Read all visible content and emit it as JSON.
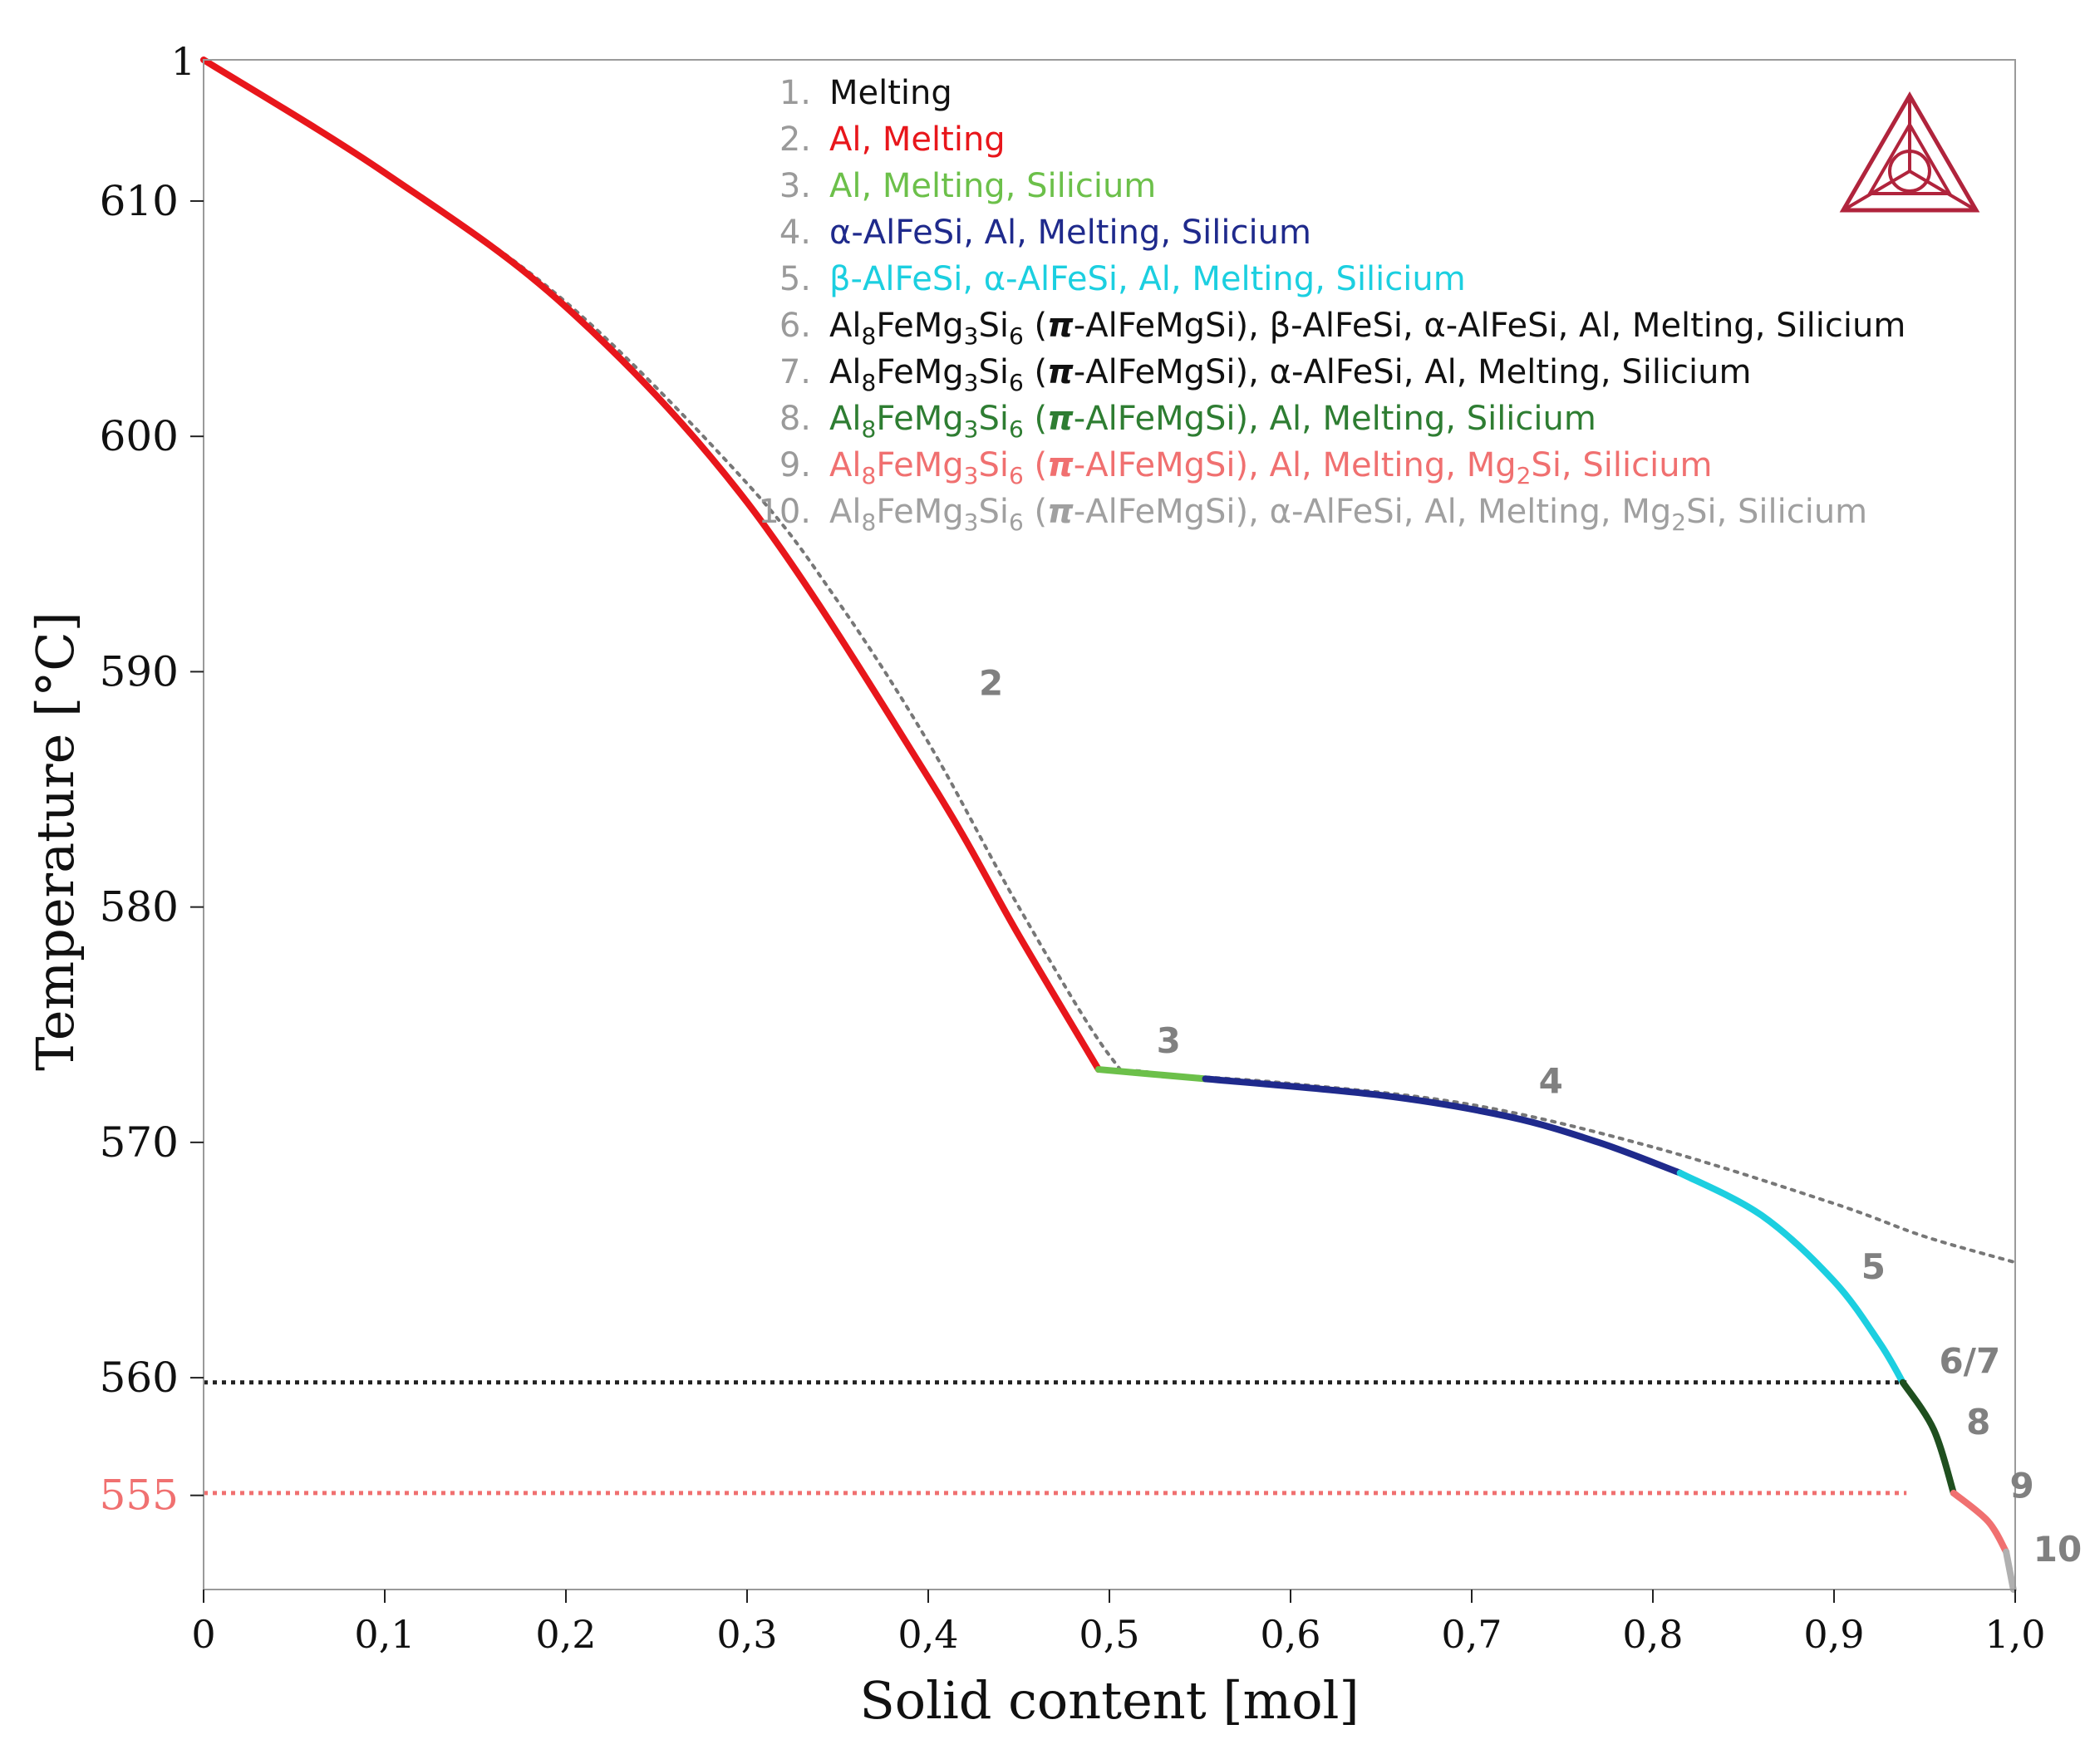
{
  "chart_data": {
    "type": "line",
    "xlabel": "Solid content [mol]",
    "ylabel": "Temperature [°C]",
    "xlim": [
      0,
      1.0
    ],
    "ylim": [
      551,
      616
    ],
    "x_ticks": [
      {
        "value": 0.0,
        "label": "0"
      },
      {
        "value": 0.1,
        "label": "0,1"
      },
      {
        "value": 0.2,
        "label": "0,2"
      },
      {
        "value": 0.3,
        "label": "0,3"
      },
      {
        "value": 0.4,
        "label": "0,4"
      },
      {
        "value": 0.5,
        "label": "0,5"
      },
      {
        "value": 0.6,
        "label": "0,6"
      },
      {
        "value": 0.7,
        "label": "0,7"
      },
      {
        "value": 0.8,
        "label": "0,8"
      },
      {
        "value": 0.9,
        "label": "0,9"
      },
      {
        "value": 1.0,
        "label": "1,0"
      }
    ],
    "y_ticks": [
      {
        "value": 610,
        "label": "610"
      },
      {
        "value": 600,
        "label": "600"
      },
      {
        "value": 590,
        "label": "590"
      },
      {
        "value": 580,
        "label": "580"
      },
      {
        "value": 570,
        "label": "570"
      },
      {
        "value": 560,
        "label": "560"
      },
      {
        "value": 555,
        "label": "555",
        "color": "#f07070"
      }
    ],
    "top_left_label": "1",
    "series": [
      {
        "name": "2",
        "color": "#e8161b",
        "points": [
          [
            0.0,
            616.0
          ],
          [
            0.1,
            611.2
          ],
          [
            0.2,
            605.5
          ],
          [
            0.3,
            597.2
          ],
          [
            0.4,
            585.5
          ],
          [
            0.45,
            578.8
          ],
          [
            0.494,
            573.1
          ]
        ]
      },
      {
        "name": "3",
        "color": "#6cc04a",
        "points": [
          [
            0.494,
            573.1
          ],
          [
            0.553,
            572.7
          ]
        ]
      },
      {
        "name": "4",
        "color": "#1f2a8c",
        "points": [
          [
            0.553,
            572.7
          ],
          [
            0.65,
            572.0
          ],
          [
            0.72,
            571.1
          ],
          [
            0.77,
            570.0
          ],
          [
            0.815,
            568.7
          ]
        ]
      },
      {
        "name": "5",
        "color": "#1ccfe0",
        "points": [
          [
            0.815,
            568.7
          ],
          [
            0.86,
            566.9
          ],
          [
            0.9,
            564.1
          ],
          [
            0.925,
            561.5
          ],
          [
            0.938,
            559.8
          ]
        ]
      },
      {
        "name": "6/7",
        "color": "#1f4f1f",
        "points": [
          [
            0.938,
            559.8
          ],
          [
            0.955,
            557.8
          ],
          [
            0.966,
            555.1
          ]
        ]
      },
      {
        "name": "9",
        "color": "#f07070",
        "points": [
          [
            0.966,
            555.1
          ],
          [
            0.985,
            553.9
          ],
          [
            0.995,
            552.6
          ]
        ]
      },
      {
        "name": "10",
        "color": "#b0b0b0",
        "points": [
          [
            0.995,
            552.6
          ],
          [
            0.999,
            551.0
          ]
        ]
      },
      {
        "name": "scheil-dotted",
        "color": "#777777",
        "dashed": true,
        "points": [
          [
            0.0,
            616.0
          ],
          [
            0.1,
            611.2
          ],
          [
            0.2,
            605.7
          ],
          [
            0.3,
            598.0
          ],
          [
            0.35,
            593.0
          ],
          [
            0.4,
            587.0
          ],
          [
            0.45,
            580.0
          ],
          [
            0.5,
            573.7
          ],
          [
            0.52,
            573.0
          ],
          [
            0.6,
            572.5
          ],
          [
            0.7,
            571.6
          ],
          [
            0.8,
            569.8
          ],
          [
            0.9,
            567.4
          ],
          [
            0.95,
            566.0
          ],
          [
            1.0,
            564.9
          ]
        ]
      }
    ],
    "reference_lines": [
      {
        "y": 559.8,
        "color": "#222222",
        "label": "560 dotted"
      },
      {
        "y": 555.1,
        "color": "#f07070",
        "label": "555 dotted"
      }
    ],
    "segment_labels": [
      {
        "text": "2",
        "x": 0.428,
        "y": 589.0
      },
      {
        "text": "3",
        "x": 0.526,
        "y": 573.8
      },
      {
        "text": "4",
        "x": 0.737,
        "y": 572.1
      },
      {
        "text": "5",
        "x": 0.915,
        "y": 564.2
      },
      {
        "text": "6/7",
        "x": 0.958,
        "y": 560.2
      },
      {
        "text": "8",
        "x": 0.973,
        "y": 557.6
      },
      {
        "text": "9",
        "x": 0.997,
        "y": 554.9
      },
      {
        "text": "10",
        "x": 1.01,
        "y": 552.2
      }
    ],
    "legend": {
      "position": "top-right",
      "entries": [
        {
          "num": "1.",
          "color": "#111111",
          "parts": [
            [
              "Melting"
            ]
          ]
        },
        {
          "num": "2.",
          "color": "#e8161b",
          "parts": [
            [
              "Al, Melting"
            ]
          ]
        },
        {
          "num": "3.",
          "color": "#6cc04a",
          "parts": [
            [
              "Al, Melting, Silicium"
            ]
          ]
        },
        {
          "num": "4.",
          "color": "#1f2a8c",
          "parts": [
            [
              "α-AlFeSi, Al, Melting, Silicium"
            ]
          ]
        },
        {
          "num": "5.",
          "color": "#1ccfe0",
          "parts": [
            [
              "β-AlFeSi, α-AlFeSi, Al, Melting, Silicium"
            ]
          ]
        },
        {
          "num": "6.",
          "color": "#111111",
          "parts": [
            [
              "Al"
            ],
            [
              "8",
              "sub"
            ],
            [
              "FeMg"
            ],
            [
              "3",
              "sub"
            ],
            [
              "Si"
            ],
            [
              "6",
              "sub"
            ],
            [
              " ("
            ],
            [
              "π",
              "bi"
            ],
            [
              "-AlFeMgSi), β-AlFeSi, α-AlFeSi, Al, Melting, Silicium"
            ]
          ]
        },
        {
          "num": "7.",
          "color": "#111111",
          "parts": [
            [
              "Al"
            ],
            [
              "8",
              "sub"
            ],
            [
              "FeMg"
            ],
            [
              "3",
              "sub"
            ],
            [
              "Si"
            ],
            [
              "6",
              "sub"
            ],
            [
              " ("
            ],
            [
              "π",
              "bi"
            ],
            [
              "-AlFeMgSi), α-AlFeSi, Al, Melting, Silicium"
            ]
          ]
        },
        {
          "num": "8.",
          "color": "#2e7d32",
          "parts": [
            [
              "Al"
            ],
            [
              "8",
              "sub"
            ],
            [
              "FeMg"
            ],
            [
              "3",
              "sub"
            ],
            [
              "Si"
            ],
            [
              "6",
              "sub"
            ],
            [
              " ("
            ],
            [
              "π",
              "bi"
            ],
            [
              "-AlFeMgSi), Al, Melting, Silicium"
            ]
          ]
        },
        {
          "num": "9.",
          "color": "#f07070",
          "parts": [
            [
              "Al"
            ],
            [
              "8",
              "sub"
            ],
            [
              "FeMg"
            ],
            [
              "3",
              "sub"
            ],
            [
              "Si"
            ],
            [
              "6",
              "sub"
            ],
            [
              " ("
            ],
            [
              "π",
              "bi"
            ],
            [
              "-AlFeMgSi), Al, Melting, Mg"
            ],
            [
              "2",
              "sub"
            ],
            [
              "Si, Silicium"
            ]
          ]
        },
        {
          "num": "10.",
          "color": "#a0a0a0",
          "parts": [
            [
              "Al"
            ],
            [
              "8",
              "sub"
            ],
            [
              "FeMg"
            ],
            [
              "3",
              "sub"
            ],
            [
              "Si"
            ],
            [
              "6",
              "sub"
            ],
            [
              " ("
            ],
            [
              "π",
              "bi"
            ],
            [
              "-AlFeMgSi), α-AlFeSi, Al, Melting, Mg"
            ],
            [
              "2",
              "sub"
            ],
            [
              "Si, Silicium"
            ]
          ]
        }
      ]
    },
    "logo": {
      "name": "thermo-calc-logo",
      "color": "#b0243c"
    }
  }
}
